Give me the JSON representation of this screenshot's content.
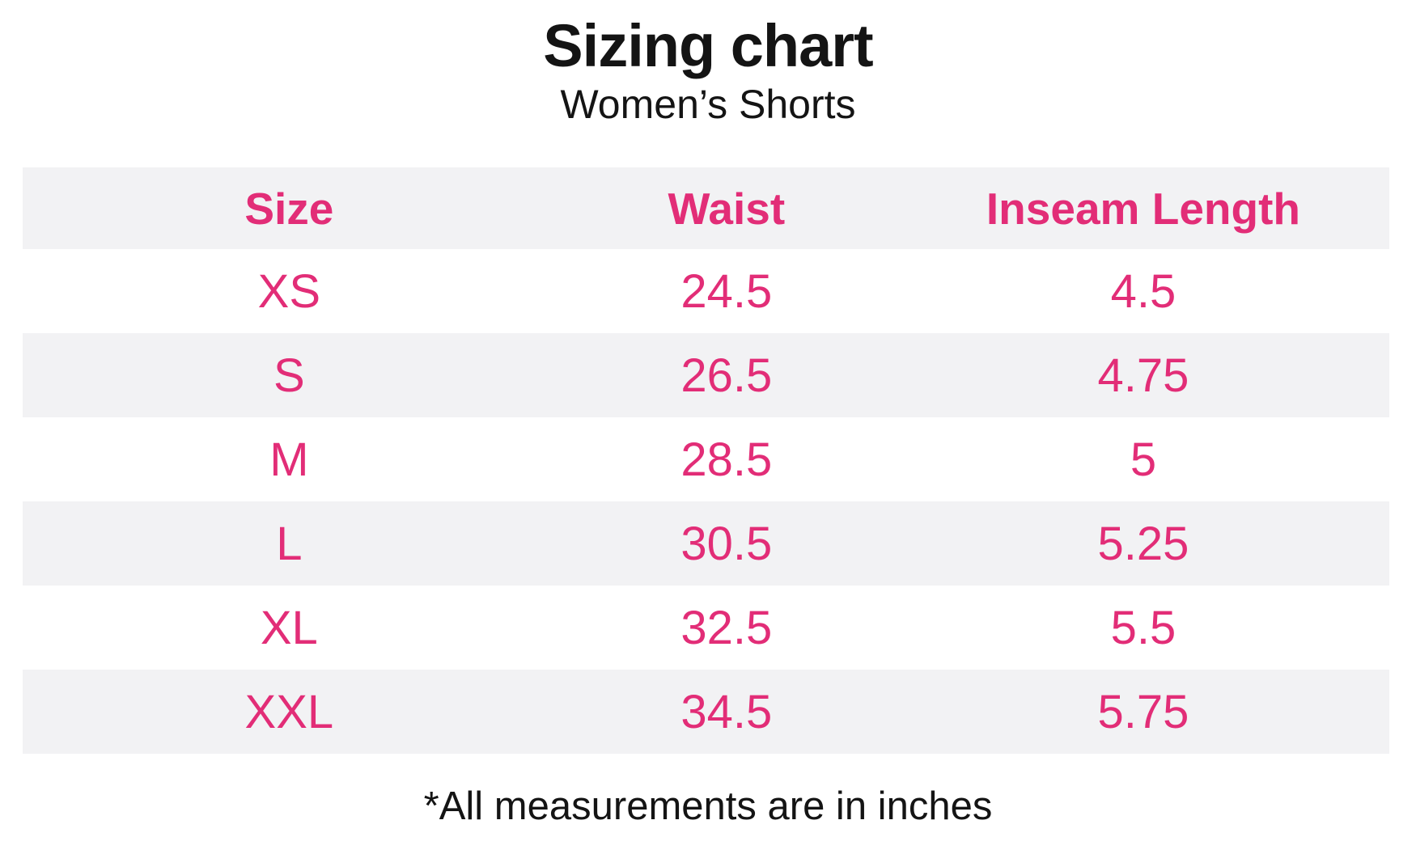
{
  "title": "Sizing chart",
  "subtitle": "Women’s Shorts",
  "footnote": "*All measurements are in inches",
  "colors": {
    "accent_pink": "#e22d77",
    "row_shade_gray": "#f2f2f4",
    "text_black": "#141414",
    "background": "#ffffff"
  },
  "table": {
    "header": {
      "size": "Size",
      "waist": "Waist",
      "inseam": "Inseam Length"
    },
    "rows": [
      {
        "size": "XS",
        "waist": "24.5",
        "inseam": "4.5"
      },
      {
        "size": "S",
        "waist": "26.5",
        "inseam": "4.75"
      },
      {
        "size": "M",
        "waist": "28.5",
        "inseam": "5"
      },
      {
        "size": "L",
        "waist": "30.5",
        "inseam": "5.25"
      },
      {
        "size": "XL",
        "waist": "32.5",
        "inseam": "5.5"
      },
      {
        "size": "XXL",
        "waist": "34.5",
        "inseam": "5.75"
      }
    ]
  },
  "chart_data": {
    "type": "table",
    "title": "Sizing chart",
    "subtitle": "Women’s Shorts",
    "columns": [
      "Size",
      "Waist",
      "Inseam Length"
    ],
    "rows": [
      [
        "XS",
        24.5,
        4.5
      ],
      [
        "S",
        26.5,
        4.75
      ],
      [
        "M",
        28.5,
        5
      ],
      [
        "L",
        30.5,
        5.25
      ],
      [
        "XL",
        32.5,
        5.5
      ],
      [
        "XXL",
        34.5,
        5.75
      ]
    ],
    "units": "inches",
    "note": "*All measurements are in inches",
    "layout": {
      "row_striping": "header and even data rows shaded #f2f2f4",
      "text_color": "#e22d77"
    }
  }
}
